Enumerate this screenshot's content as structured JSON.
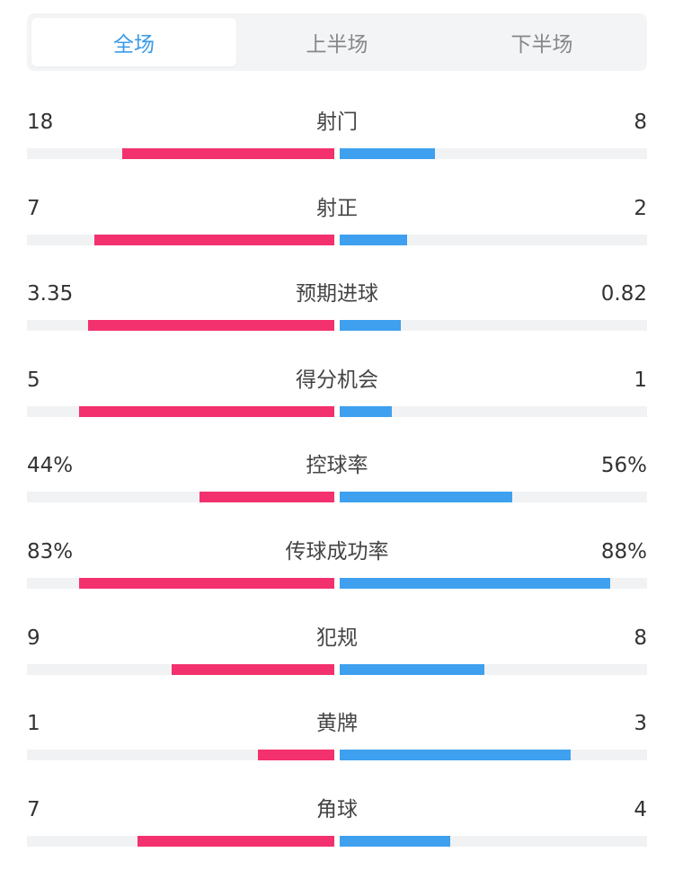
{
  "tabs": [
    {
      "label": "全场",
      "active": true
    },
    {
      "label": "上半场",
      "active": false
    },
    {
      "label": "下半场",
      "active": false
    }
  ],
  "colors": {
    "home": "#f2316e",
    "away": "#3ea0ef",
    "active_tab": "#3a9be8",
    "track": "#f1f2f4"
  },
  "stats": [
    {
      "label": "射门",
      "home": "18",
      "away": "8",
      "home_share": 0.69,
      "away_share": 0.31
    },
    {
      "label": "射正",
      "home": "7",
      "away": "2",
      "home_share": 0.78,
      "away_share": 0.22
    },
    {
      "label": "预期进球",
      "home": "3.35",
      "away": "0.82",
      "home_share": 0.8,
      "away_share": 0.2
    },
    {
      "label": "得分机会",
      "home": "5",
      "away": "1",
      "home_share": 0.83,
      "away_share": 0.17
    },
    {
      "label": "控球率",
      "home": "44%",
      "away": "56%",
      "home_share": 0.44,
      "away_share": 0.56
    },
    {
      "label": "传球成功率",
      "home": "83%",
      "away": "88%",
      "home_share": 0.83,
      "away_share": 0.88
    },
    {
      "label": "犯规",
      "home": "9",
      "away": "8",
      "home_share": 0.53,
      "away_share": 0.47
    },
    {
      "label": "黄牌",
      "home": "1",
      "away": "3",
      "home_share": 0.25,
      "away_share": 0.75
    },
    {
      "label": "角球",
      "home": "7",
      "away": "4",
      "home_share": 0.64,
      "away_share": 0.36
    }
  ]
}
